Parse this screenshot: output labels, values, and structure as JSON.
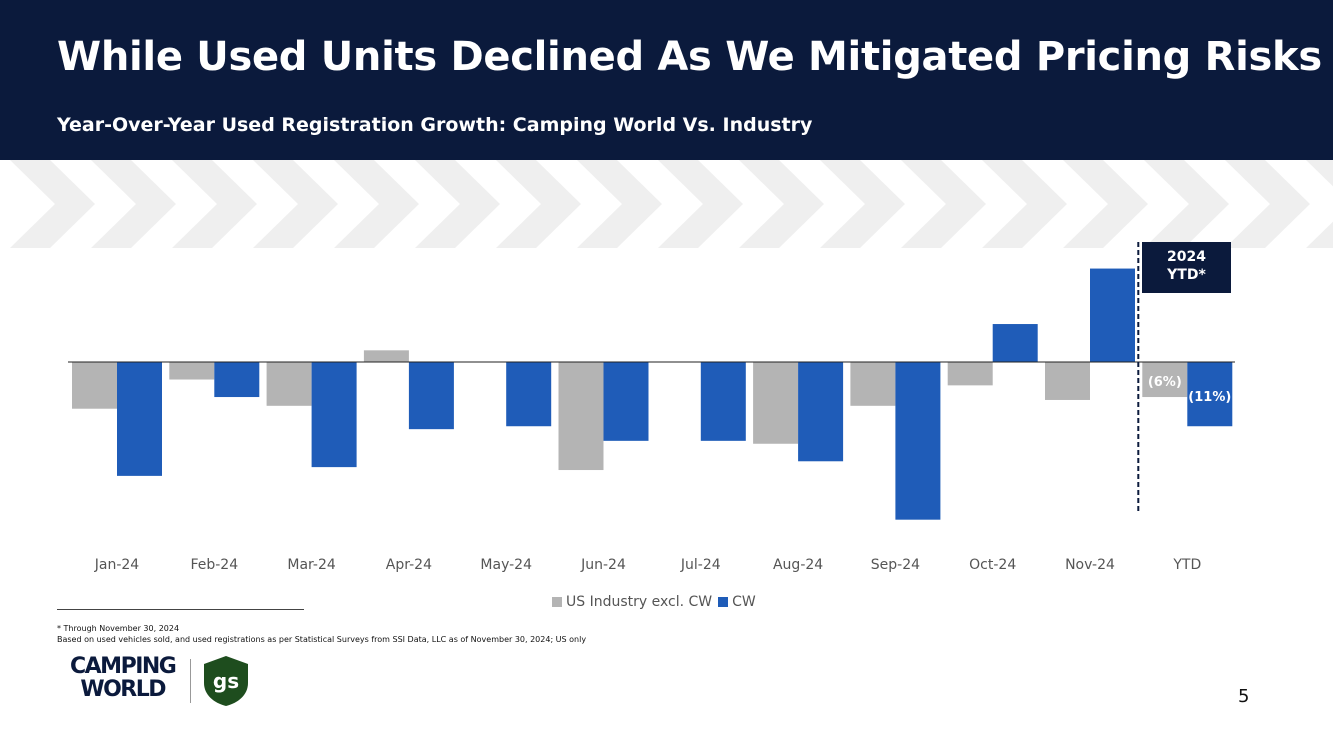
{
  "slide": {
    "title": "While Used Units Declined As We Mitigated Pricing Risks",
    "subtitle": "Year-Over-Year Used Registration Growth: Camping World Vs. Industry",
    "page_number": "5"
  },
  "ytd_box": {
    "line1": "2024",
    "line2": "YTD*"
  },
  "footnotes": {
    "line1": "* Through November 30, 2024",
    "line2": "Based on used vehicles sold, and used registrations as per Statistical Surveys from SSI Data, LLC as of November 30, 2024; US only"
  },
  "logo": {
    "brand_line1": "CAMPING",
    "brand_line2": "WORLD",
    "badge_text": "gs"
  },
  "colors": {
    "header_bg": "#0b1a3c",
    "industry_bar": "#b4b4b4",
    "cw_bar": "#1f5cb8",
    "badge_green": "#1e4d1e"
  },
  "chart_data": {
    "type": "bar",
    "title": "Year-Over-Year Used Registration Growth: Camping World Vs. Industry",
    "xlabel": "",
    "ylabel": "",
    "ylim": [
      -27,
      17
    ],
    "categories": [
      "Jan-24",
      "Feb-24",
      "Mar-24",
      "Apr-24",
      "May-24",
      "Jun-24",
      "Jul-24",
      "Aug-24",
      "Sep-24",
      "Oct-24",
      "Nov-24",
      "YTD"
    ],
    "series": [
      {
        "name": "US Industry excl. CW",
        "values": [
          -8,
          -3,
          -7.5,
          2,
          0,
          -18.5,
          0,
          -14,
          -7.5,
          -4,
          -6.5,
          -6
        ]
      },
      {
        "name": "CW",
        "values": [
          -19.5,
          -6,
          -18,
          -11.5,
          -11,
          -13.5,
          -13.5,
          -17,
          -27,
          6.5,
          16,
          -11
        ]
      }
    ],
    "data_labels": {
      "US Industry excl. CW.YTD": "(6%)",
      "CW.YTD": "(11%)"
    },
    "legend": "bottom-center"
  }
}
